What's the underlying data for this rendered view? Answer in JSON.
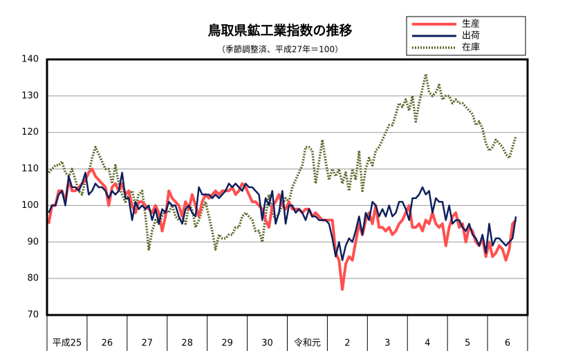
{
  "chart_data": {
    "type": "line",
    "title": "鳥取県鉱工業指数の推移",
    "subtitle": "（季節調整済、平成27年＝100）",
    "categories": [
      null,
      null,
      null,
      null,
      null,
      null,
      "平成25",
      null,
      null,
      null,
      null,
      null,
      null,
      null,
      null,
      null,
      null,
      null,
      "26",
      null,
      null,
      null,
      null,
      null,
      null,
      null,
      null,
      null,
      null,
      null,
      "27",
      null,
      null,
      null,
      null,
      null,
      null,
      null,
      null,
      null,
      null,
      null,
      "28",
      null,
      null,
      null,
      null,
      null,
      null,
      null,
      null,
      null,
      null,
      null,
      "29",
      null,
      null,
      null,
      null,
      null,
      null,
      null,
      null,
      null,
      null,
      null,
      "30",
      null,
      null,
      null,
      null,
      null,
      null,
      null,
      null,
      null,
      null,
      null,
      "令和元",
      null,
      null,
      null,
      null,
      null,
      null,
      null,
      null,
      null,
      null,
      null,
      "2",
      null,
      null,
      null,
      null,
      null,
      null,
      null,
      null,
      null,
      null,
      null,
      "3",
      null,
      null,
      null,
      null,
      null,
      null,
      null,
      null,
      null,
      null,
      null,
      "4",
      null,
      null,
      null,
      null,
      null,
      null,
      null,
      null,
      null,
      null,
      null,
      "5",
      null,
      null,
      null,
      null,
      null,
      null,
      null,
      null,
      null,
      null,
      null,
      "6",
      null,
      null
    ],
    "series": [
      {
        "name": "生産",
        "color": "#ff5050",
        "values": [
          95,
          100,
          100,
          104,
          104,
          101,
          107,
          104,
          104,
          105,
          106,
          107,
          109,
          110,
          108,
          107,
          106,
          105,
          100,
          105,
          106,
          104,
          106,
          103,
          104,
          100,
          98,
          101,
          101,
          100,
          99,
          98,
          100,
          98,
          93,
          97,
          104,
          102,
          101,
          100,
          97,
          101,
          99,
          103,
          100,
          97,
          101,
          103,
          102,
          103,
          104,
          103,
          104,
          104,
          104,
          105,
          103,
          104,
          106,
          105,
          103,
          101,
          101,
          100,
          99,
          96,
          94,
          100,
          101,
          103,
          100,
          99,
          101,
          99,
          99,
          99,
          98,
          99,
          99,
          97,
          98,
          97,
          96,
          96,
          96,
          96,
          87,
          85,
          77,
          84,
          86,
          85,
          90,
          95,
          92,
          96,
          98,
          95,
          100,
          94,
          94,
          93,
          94,
          92,
          93,
          95,
          96,
          98,
          100,
          94,
          94,
          95,
          93,
          96,
          95,
          98,
          95,
          94,
          95,
          89,
          94,
          97,
          98,
          94,
          95,
          90,
          94,
          93,
          90,
          89,
          91,
          86,
          90,
          86,
          87,
          89,
          88,
          85,
          88,
          95,
          96
        ]
      },
      {
        "name": "出荷",
        "color": "#0d1f5c",
        "values": [
          98,
          100,
          100,
          103,
          104,
          100,
          108,
          105,
          105,
          104,
          106,
          109,
          103,
          104,
          106,
          105,
          105,
          104,
          102,
          104,
          103,
          104,
          109,
          102,
          102,
          96,
          101,
          99,
          100,
          99,
          100,
          96,
          99,
          95,
          99,
          98,
          101,
          100,
          100,
          97,
          95,
          99,
          100,
          98,
          97,
          105,
          103,
          103,
          103,
          102,
          103,
          102,
          103,
          104,
          106,
          105,
          106,
          105,
          104,
          106,
          105,
          105,
          104,
          103,
          96,
          102,
          100,
          104,
          95,
          98,
          104,
          95,
          100,
          100,
          98,
          99,
          98,
          96,
          99,
          97,
          97,
          96,
          96,
          96,
          95,
          91,
          86,
          90,
          85,
          89,
          91,
          90,
          93,
          97,
          92,
          98,
          96,
          101,
          100,
          97,
          99,
          97,
          100,
          97,
          98,
          101,
          101,
          99,
          96,
          102,
          102,
          103,
          105,
          103,
          104,
          98,
          102,
          101,
          101,
          96,
          100,
          95,
          96,
          96,
          94,
          93,
          95,
          92,
          91,
          89,
          92,
          87,
          95,
          89,
          91,
          91,
          90,
          89,
          90,
          91,
          97
        ]
      },
      {
        "name": "在庫",
        "color": "#5a6628",
        "dash": "dotted",
        "values": [
          109,
          110,
          111,
          111,
          112,
          109,
          108,
          110,
          107,
          104,
          103,
          107,
          109,
          113,
          116,
          114,
          112,
          110,
          110,
          106,
          111,
          106,
          103,
          101,
          103,
          104,
          100,
          103,
          104,
          97,
          88,
          93,
          96,
          95,
          97,
          99,
          98,
          100,
          97,
          96,
          97,
          95,
          100,
          99,
          94,
          96,
          99,
          101,
          97,
          93,
          88,
          92,
          91,
          91,
          92,
          92,
          94,
          94,
          97,
          98,
          97,
          96,
          93,
          93,
          90,
          97,
          103,
          98,
          96,
          98,
          100,
          102,
          101,
          105,
          107,
          109,
          111,
          116,
          116,
          115,
          106,
          112,
          118,
          112,
          107,
          110,
          108,
          110,
          106,
          109,
          104,
          110,
          107,
          115,
          104,
          110,
          113,
          111,
          115,
          116,
          118,
          120,
          122,
          122,
          125,
          128,
          127,
          129,
          126,
          130,
          123,
          128,
          132,
          136,
          131,
          130,
          131,
          133,
          129,
          130,
          130,
          128,
          129,
          128,
          128,
          127,
          126,
          125,
          122,
          123,
          121,
          117,
          115,
          116,
          118,
          117,
          116,
          114,
          113,
          116,
          119
        ]
      }
    ],
    "ylim": [
      70,
      140
    ],
    "yticks": [
      70,
      80,
      90,
      100,
      110,
      120,
      130,
      140
    ],
    "grid": true,
    "legend": "top-right"
  }
}
